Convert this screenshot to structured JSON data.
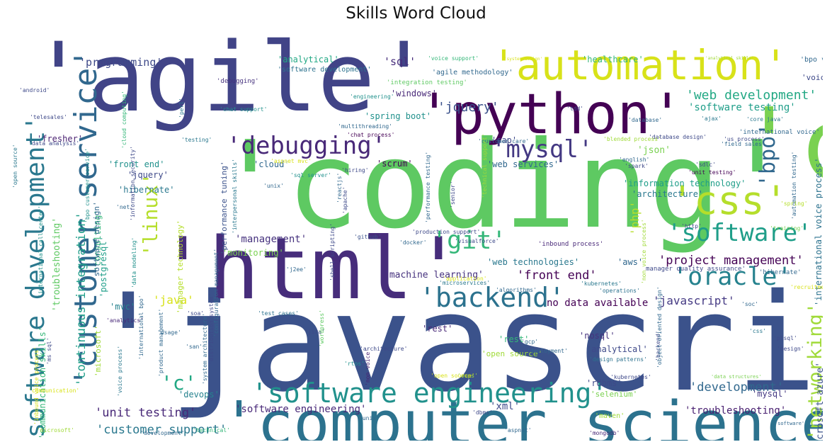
{
  "title": "Skills Word Cloud",
  "words": [
    {
      "text": "'agile'",
      "color": "#414487"
    },
    {
      "text": "'javascript'",
      "color": "#3b528b"
    },
    {
      "text": "'coding'",
      "color": "#5ec962"
    },
    {
      "text": "'html'",
      "color": "#472d7b"
    },
    {
      "text": "'python'",
      "color": "#440154"
    },
    {
      "text": "'computer science'",
      "color": "#2c728e"
    },
    {
      "text": "'automation'",
      "color": "#d8e219"
    },
    {
      "text": "'c'",
      "color": "#7ad151"
    },
    {
      "text": "'software engineering'",
      "color": "#21918c"
    },
    {
      "text": "'customer service'",
      "color": "#31688e"
    },
    {
      "text": "'software development'",
      "color": "#2a788e"
    },
    {
      "text": "'backend'",
      "color": "#2c728e"
    },
    {
      "text": "'debugging'",
      "color": "#482878"
    },
    {
      "text": "'software'",
      "color": "#1f9e89"
    },
    {
      "text": "'oracle'",
      "color": "#26828e"
    },
    {
      "text": "'git'",
      "color": "#35b779"
    },
    {
      "text": "'css'",
      "color": "#b5de2b"
    },
    {
      "text": "'mysql'",
      "color": "#443983"
    },
    {
      "text": "'networking'",
      "color": "#a0da39"
    },
    {
      "text": "'linux'",
      "color": "#b5de2b"
    },
    {
      "text": "'bpo'",
      "color": "#31688e"
    },
    {
      "text": "'jquery'",
      "color": "#3b528b"
    },
    {
      "text": "'web development'",
      "color": "#22a884"
    },
    {
      "text": "'unit testing'",
      "color": "#482878"
    },
    {
      "text": "'customer support'",
      "color": "#2a788e"
    },
    {
      "text": "'application development'",
      "color": "#21918c"
    },
    {
      "text": "'sales'",
      "color": "#440154"
    },
    {
      "text": "'data structures'",
      "color": "#b5de2b"
    },
    {
      "text": "'project management'",
      "color": "#440154"
    },
    {
      "text": "'front end'",
      "color": "#440154"
    },
    {
      "text": "'javascript'",
      "color": "#443983"
    },
    {
      "text": "'development'",
      "color": "#31688e"
    },
    {
      "text": "'troubleshooting'",
      "color": "#481f70"
    },
    {
      "text": "'programming'",
      "color": "#3e4989"
    },
    {
      "text": "'healthcare'",
      "color": "#35b779"
    },
    {
      "text": "'sql'",
      "color": "#472d7b"
    },
    {
      "text": "'analytical'",
      "color": "#22a884"
    },
    {
      "text": "'management'",
      "color": "#46327e"
    },
    {
      "text": "'monitoring'",
      "color": "#7ad151"
    },
    {
      "text": "'machine learning'",
      "color": "#46327e"
    },
    {
      "text": "'software testing'",
      "color": "#1f9e89"
    },
    {
      "text": "'information technology'",
      "color": "#1f9e89"
    },
    {
      "text": "'architecture'",
      "color": "#2a788e"
    },
    {
      "text": "'continuous integration'",
      "color": "#1f9e89"
    },
    {
      "text": "'troubleshooting'",
      "color": "#5ec962"
    },
    {
      "text": "'communication skills'",
      "color": "#35b779"
    },
    {
      "text": "'international voice process'",
      "color": "#2c728e"
    },
    {
      "text": "'microsoft azure'",
      "color": "#3b528b"
    },
    {
      "text": "'software engineering'",
      "color": "#482878"
    },
    {
      "text": "'xml'",
      "color": "#3e4989"
    },
    {
      "text": "'c'",
      "color": "#22a884"
    },
    {
      "text": "'devops'",
      "color": "#26828e"
    },
    {
      "text": "'version control'",
      "color": "#3b528b"
    },
    {
      "text": "'voice process'",
      "color": "#2a788e"
    },
    {
      "text": "'software development life cycle'",
      "color": "#2c728e"
    },
    {
      "text": "'rdbms'",
      "color": "#3e4989"
    },
    {
      "text": "'fresher'",
      "color": "#481f70"
    },
    {
      "text": "'front end'",
      "color": "#21918c"
    },
    {
      "text": "'jquery'",
      "color": "#3e4989"
    },
    {
      "text": "'hibernate'",
      "color": "#2a788e"
    },
    {
      "text": "'consulting'",
      "color": "#35b779"
    },
    {
      "text": "'postgresql'",
      "color": "#1f9e89"
    },
    {
      "text": "'sap'",
      "color": "#3e4989"
    },
    {
      "text": "'json'",
      "color": "#7ad151"
    },
    {
      "text": "'spring boot'",
      "color": "#21918c"
    },
    {
      "text": "'windows'",
      "color": "#482878"
    },
    {
      "text": "'scrum'",
      "color": "#440154"
    },
    {
      "text": "'cloud'",
      "color": "#31688e"
    },
    {
      "text": "'web services'",
      "color": "#31688e"
    },
    {
      "text": "'web technologies'",
      "color": "#2a788e"
    },
    {
      "text": "'mysql'",
      "color": "#443983"
    },
    {
      "text": "'java'",
      "color": "#d8e219"
    },
    {
      "text": "'php'",
      "color": "#b5de2b"
    },
    {
      "text": "'voice'",
      "color": "#3e4989"
    },
    {
      "text": "'bpo voice'",
      "color": "#31688e"
    },
    {
      "text": "'mvc'",
      "color": "#26828e"
    },
    {
      "text": "'aws'",
      "color": "#31688e"
    },
    {
      "text": "'rest'",
      "color": "#35b779"
    },
    {
      "text": "'rest'",
      "color": "#482878"
    },
    {
      "text": "'nosql'",
      "color": "#46327e"
    },
    {
      "text": "'analytical'",
      "color": "#3e4989"
    },
    {
      "text": "'selenium'",
      "color": "#7ad151"
    },
    {
      "text": "'maven'",
      "color": "#a0da39"
    },
    {
      "text": "'open source'",
      "color": "#a0da39"
    },
    {
      "text": "no data available",
      "color": "#440154"
    },
    {
      "text": "'microsoft'",
      "color": "#a0da39"
    },
    {
      "text": "'performance tuning'",
      "color": "#3b528b"
    },
    {
      "text": "'manager technology'",
      "color": "#b5de2b"
    },
    {
      "text": "'software design'",
      "color": "#31688e"
    },
    {
      "text": "'agile methodology'",
      "color": "#31688e"
    },
    {
      "text": "'software development'",
      "color": "#2c728e"
    },
    {
      "text": "'engineering'",
      "color": "#21918c"
    },
    {
      "text": "'debugging'",
      "color": "#46327e"
    },
    {
      "text": "'perl'",
      "color": "#2a788e"
    },
    {
      "text": "'android'",
      "color": "#3e4989"
    },
    {
      "text": "'voice support'",
      "color": "#35b779"
    },
    {
      "text": "'system design'",
      "color": "#d8e219"
    },
    {
      "text": "'analytical skills'",
      "color": "#a0da39"
    },
    {
      "text": "'integration testing'",
      "color": "#5ec962"
    },
    {
      "text": "manager quality assurance'",
      "color": "#3e4989"
    },
    {
      "text": "'inbound process'",
      "color": "#482878"
    },
    {
      "text": "'operations'",
      "color": "#2c728e"
    },
    {
      "text": "'algorithms'",
      "color": "#31688e"
    },
    {
      "text": "'kubernetes'",
      "color": "#2a788e"
    },
    {
      "text": "'microservices'",
      "color": "#2a788e"
    },
    {
      "text": "'hibernate'",
      "color": "#31688e"
    },
    {
      "text": "'backend'",
      "color": "#3e4989"
    },
    {
      "text": "'design patterns'",
      "color": "#2c728e"
    },
    {
      "text": "'test cases'",
      "color": "#2c728e"
    },
    {
      "text": "'jira'",
      "color": "#3e4989"
    },
    {
      "text": "'github'",
      "color": "#3b528b"
    },
    {
      "text": "'docker'",
      "color": "#31688e"
    },
    {
      "text": "'j2ee'",
      "color": "#31688e"
    },
    {
      "text": "'aspnet'",
      "color": "#31688e"
    },
    {
      "text": "'mongodb'",
      "color": "#482878"
    },
    {
      "text": "'non voice'",
      "color": "#481f70"
    },
    {
      "text": "'data modeling'",
      "color": "#21918c"
    },
    {
      "text": "'international bpo'",
      "color": "#31688e"
    },
    {
      "text": "'product management'",
      "color": "#31688e"
    },
    {
      "text": "'distribution system'",
      "color": "#3e4989"
    },
    {
      "text": "'configuration management'",
      "color": "#31688e"
    },
    {
      "text": "'sql server'",
      "color": "#21918c"
    },
    {
      "text": "'customer care'",
      "color": "#31688e"
    },
    {
      "text": "'technical support'",
      "color": "#a0da39"
    },
    {
      "text": "'reactjs'",
      "color": "#31688e"
    },
    {
      "text": "'performance testing'",
      "color": "#31688e"
    },
    {
      "text": "'database design'",
      "color": "#3e4989"
    },
    {
      "text": "'international voice'",
      "color": "#31688e"
    },
    {
      "text": "'ajax'",
      "color": "#2a788e"
    },
    {
      "text": "'core java'",
      "color": "#2a788e"
    },
    {
      "text": "'sdlc'",
      "color": "#3e4989"
    },
    {
      "text": "'unit testing'",
      "color": "#440154"
    },
    {
      "text": "'automation testing'",
      "color": "#31688e"
    },
    {
      "text": "'http'",
      "color": "#3e4989"
    },
    {
      "text": "'training'",
      "color": "#7ad151"
    },
    {
      "text": "'spring'",
      "color": "#b5de2b"
    },
    {
      "text": "'testing'",
      "color": "#2a788e"
    },
    {
      "text": "'cloud computing'",
      "color": "#35b779"
    },
    {
      "text": "'data analysis'",
      "color": "#3e4989"
    },
    {
      "text": "'international call center'",
      "color": "#21918c"
    },
    {
      "text": "'interpersonal skills'",
      "color": "#2a788e"
    },
    {
      "text": "'net'",
      "color": "#31688e"
    },
    {
      "text": "'soa'",
      "color": "#3e4989"
    },
    {
      "text": "'analytics'",
      "color": "#482878"
    },
    {
      "text": "'ms sql'",
      "color": "#3e4989"
    },
    {
      "text": "'voice process'",
      "color": "#2a788e"
    },
    {
      "text": "'wordpress'",
      "color": "#5ec962"
    },
    {
      "text": "'css'",
      "color": "#2a788e"
    },
    {
      "text": "'plsql'",
      "color": "#3e4989"
    },
    {
      "text": "'design'",
      "color": "#3e4989"
    },
    {
      "text": "'gcp'",
      "color": "#31688e"
    },
    {
      "text": "'deployment'",
      "color": "#31688e"
    },
    {
      "text": "'data structures'",
      "color": "#7ad151"
    },
    {
      "text": "'unix'",
      "color": "#31688e"
    },
    {
      "text": "'software'",
      "color": "#31688e"
    },
    {
      "text": "'technical'",
      "color": "#35b779"
    },
    {
      "text": "'microsoft'",
      "color": "#a0da39"
    },
    {
      "text": "'development'",
      "color": "#31688e"
    },
    {
      "text": "'san'",
      "color": "#31688e"
    },
    {
      "text": "'usage'",
      "color": "#31688e"
    },
    {
      "text": "'architecture'",
      "color": "#3e4989"
    },
    {
      "text": "'english'",
      "color": "#31688e"
    },
    {
      "text": "'spark'",
      "color": "#3e4989"
    },
    {
      "text": "'field sales'",
      "color": "#31688e"
    },
    {
      "text": "'us process'",
      "color": "#3e4989"
    },
    {
      "text": "'blended process'",
      "color": "#a0da39"
    },
    {
      "text": "'database'",
      "color": "#31688e"
    },
    {
      "text": "'tdd'",
      "color": "#3e4989"
    },
    {
      "text": "'multithreading'",
      "color": "#31688e"
    },
    {
      "text": "'chat process'",
      "color": "#440154"
    },
    {
      "text": "'chat support'",
      "color": "#21918c"
    },
    {
      "text": "'telesales'",
      "color": "#3e4989"
    },
    {
      "text": "'open source'",
      "color": "#2a788e"
    },
    {
      "text": "'hiring'",
      "color": "#3e4989"
    },
    {
      "text": "'unix'",
      "color": "#31688e"
    },
    {
      "text": "'apache'",
      "color": "#3e4989"
    },
    {
      "text": "'senior'",
      "color": "#3e4989"
    },
    {
      "text": "'production support'",
      "color": "#3e4989"
    },
    {
      "text": "'visualforce'",
      "color": "#3e4989"
    },
    {
      "text": "'application'",
      "color": "#d8e219"
    },
    {
      "text": "'shell scripting'",
      "color": "#3e4989"
    },
    {
      "text": "'object oriented design'",
      "color": "#31688e"
    },
    {
      "text": "'non voice process'",
      "color": "#a0da39"
    },
    {
      "text": "'recruitment'",
      "color": "#d8e219"
    },
    {
      "text": "'rtos'",
      "color": "#21918c"
    },
    {
      "text": "'oops'",
      "color": "#a0da39"
    },
    {
      "text": "'dbms'",
      "color": "#3e4989"
    },
    {
      "text": "'kubernetes'",
      "color": "#3e4989"
    },
    {
      "text": "'system architecture'",
      "color": "#31688e"
    },
    {
      "text": "'inbound voice process'",
      "color": "#d8e219"
    },
    {
      "text": "'bpo customer service'",
      "color": "#21918c"
    },
    {
      "text": "'information security'",
      "color": "#3e4989"
    },
    {
      "text": "'open source'",
      "color": "#d8e219"
    },
    {
      "text": "'communication'",
      "color": "#d8e219"
    },
    {
      "text": "'aspnet mvc'",
      "color": "#d8e219"
    },
    {
      "text": "'soc'",
      "color": "#31688e"
    }
  ]
}
